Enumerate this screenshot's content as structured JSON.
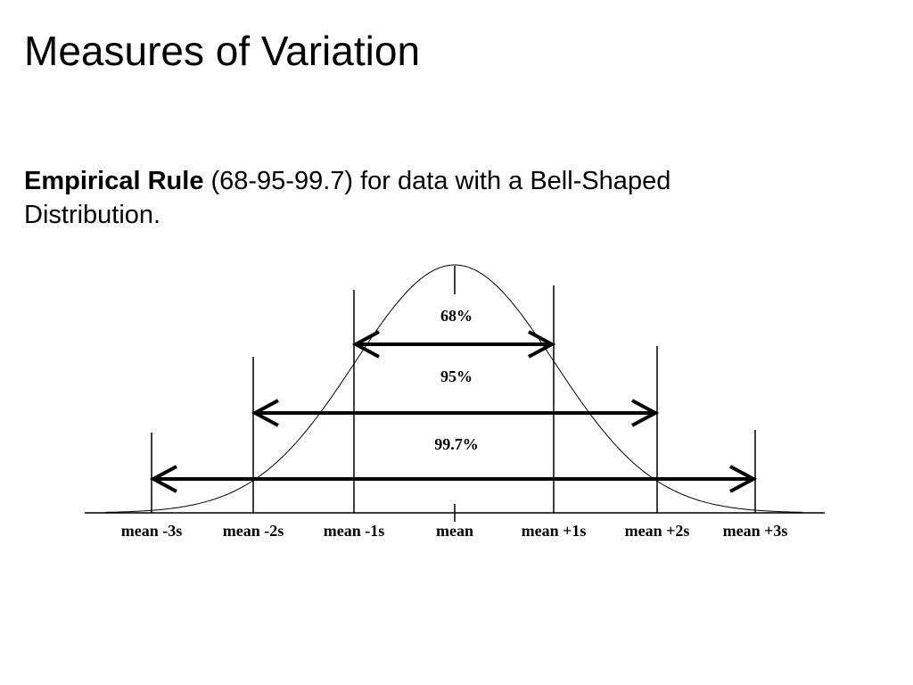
{
  "title": "Measures of Variation",
  "subtitle": {
    "bold": "Empirical Rule",
    "text": "(68-95-99.7) for data with a Bell-Shaped Distribution."
  },
  "diagram": {
    "axis_labels": [
      "mean -3s",
      "mean -2s",
      "mean -1s",
      "mean",
      "mean +1s",
      "mean +2s",
      "mean +3s"
    ],
    "ranges": [
      {
        "label": "68%"
      },
      {
        "label": "95%"
      },
      {
        "label": "99.7%"
      }
    ]
  }
}
